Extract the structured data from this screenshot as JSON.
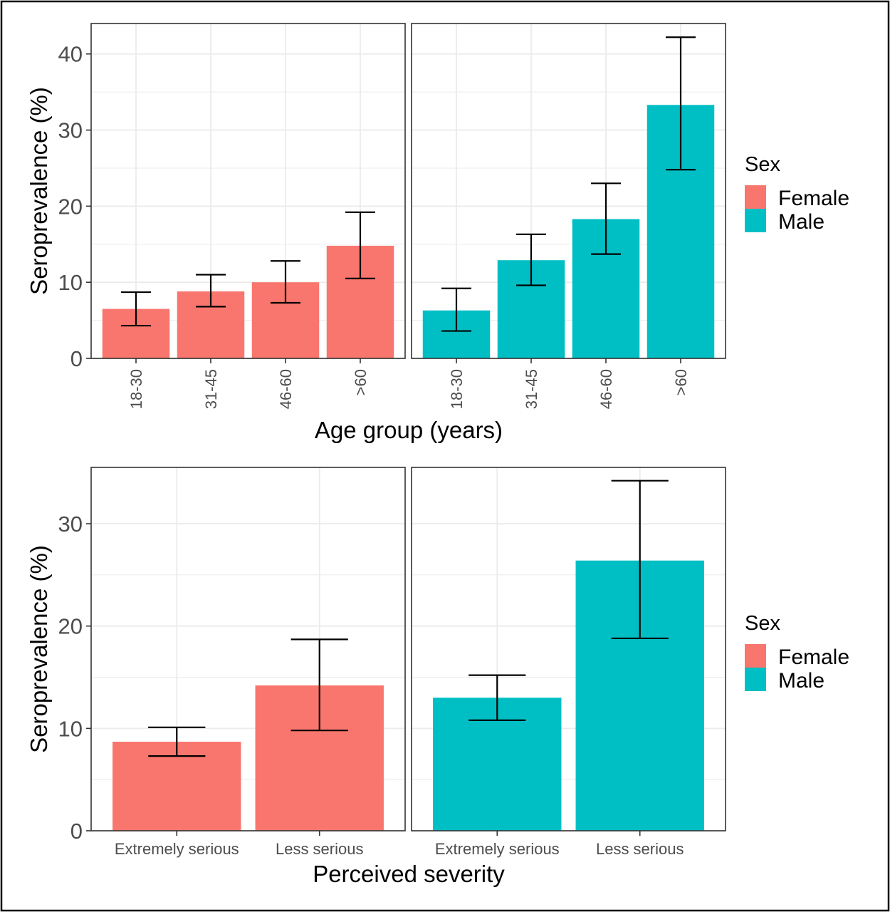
{
  "colors": {
    "female": "#F8766D",
    "male": "#00BFC4",
    "grid": "#EBEBEB",
    "panel_border": "#333333",
    "text": "#000000",
    "tick_text": "#4D4D4D"
  },
  "legend": {
    "title": "Sex",
    "items": [
      {
        "label": "Female",
        "color": "#F8766D"
      },
      {
        "label": "Male",
        "color": "#00BFC4"
      }
    ],
    "placement": "right"
  },
  "chart_data": [
    {
      "type": "bar",
      "xlabel": "Age group (years)",
      "ylabel": "Seroprevalence (%)",
      "ylim": [
        0,
        44
      ],
      "yticks": [
        0,
        10,
        20,
        30,
        40
      ],
      "grid": true,
      "categories": [
        "18-30",
        "31-45",
        "46-60",
        ">60"
      ],
      "series": [
        {
          "name": "Female",
          "values": [
            6.5,
            8.8,
            10.0,
            14.8
          ],
          "lower": [
            4.3,
            6.8,
            7.3,
            10.5
          ],
          "upper": [
            8.7,
            11.0,
            12.8,
            19.2
          ]
        },
        {
          "name": "Male",
          "values": [
            6.3,
            12.9,
            18.3,
            33.3
          ],
          "lower": [
            3.6,
            9.6,
            13.7,
            24.8
          ],
          "upper": [
            9.2,
            16.3,
            23.0,
            42.2
          ]
        }
      ]
    },
    {
      "type": "bar",
      "xlabel": "Perceived severity",
      "ylabel": "Seroprevalence (%)",
      "ylim": [
        0,
        35.5
      ],
      "yticks": [
        0,
        10,
        20,
        30
      ],
      "grid": true,
      "categories": [
        "Extremely serious",
        "Less serious"
      ],
      "series": [
        {
          "name": "Female",
          "values": [
            8.7,
            14.2
          ],
          "lower": [
            7.3,
            9.8
          ],
          "upper": [
            10.1,
            18.7
          ]
        },
        {
          "name": "Male",
          "values": [
            13.0,
            26.4
          ],
          "lower": [
            10.8,
            18.8
          ],
          "upper": [
            15.2,
            34.2
          ]
        }
      ]
    }
  ]
}
